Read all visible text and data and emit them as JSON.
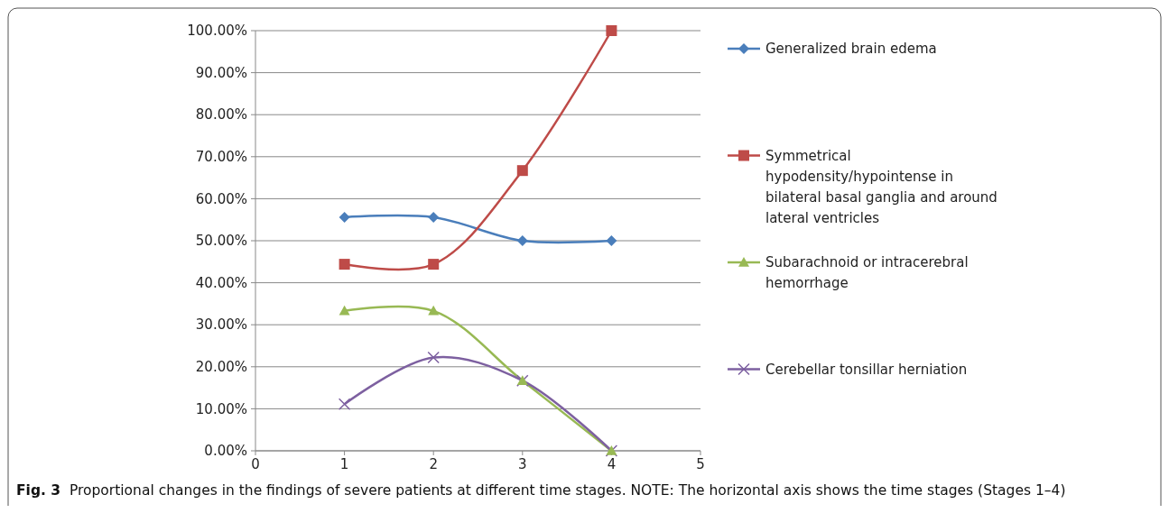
{
  "chart_data": {
    "type": "line",
    "annotations": [
      "Fig. 3  Proportional changes in the findings of severe patients at different time stages. NOTE: The horizontal axis shows the time stages (Stages 1–4)"
    ],
    "x": [
      1,
      2,
      3,
      4
    ],
    "series": [
      {
        "name": "Generalized brain edema",
        "color": "#4a7ebb",
        "values": [
          55.6,
          55.6,
          50,
          50
        ],
        "marker": "diamond"
      },
      {
        "name": "Symmetrical hypodensity/hypointense in bilateral basal ganglia and around lateral ventricles",
        "color": "#be4b48",
        "values": [
          44.4,
          44.4,
          66.7,
          100
        ],
        "marker": "square"
      },
      {
        "name": "Subarachnoid or intracerebral hemorrhage",
        "color": "#98b954",
        "values": [
          33.3,
          33.3,
          16.7,
          0
        ],
        "marker": "triangle"
      },
      {
        "name": "Cerebellar tonsillar herniation",
        "color": "#7d60a0",
        "values": [
          11.1,
          22.2,
          16.7,
          0
        ],
        "marker": "cross"
      }
    ],
    "xlim": [
      0,
      5
    ],
    "xticks": [
      0,
      1,
      2,
      3,
      4,
      5
    ],
    "ylim": [
      0,
      100
    ],
    "yticks": [
      {
        "value": 0,
        "label": "0.00%"
      },
      {
        "value": 10,
        "label": "10.00%"
      },
      {
        "value": 20,
        "label": "20.00%"
      },
      {
        "value": 30,
        "label": "30.00%"
      },
      {
        "value": 40,
        "label": "40.00%"
      },
      {
        "value": 50,
        "label": "50.00%"
      },
      {
        "value": 60,
        "label": "60.00%"
      },
      {
        "value": 70,
        "label": "70.00%"
      },
      {
        "value": 80,
        "label": "80.00%"
      },
      {
        "value": 90,
        "label": "90.00%"
      },
      {
        "value": 100,
        "label": "100.00%"
      }
    ],
    "grid": "y",
    "legend": "right",
    "line_style": "solid"
  }
}
